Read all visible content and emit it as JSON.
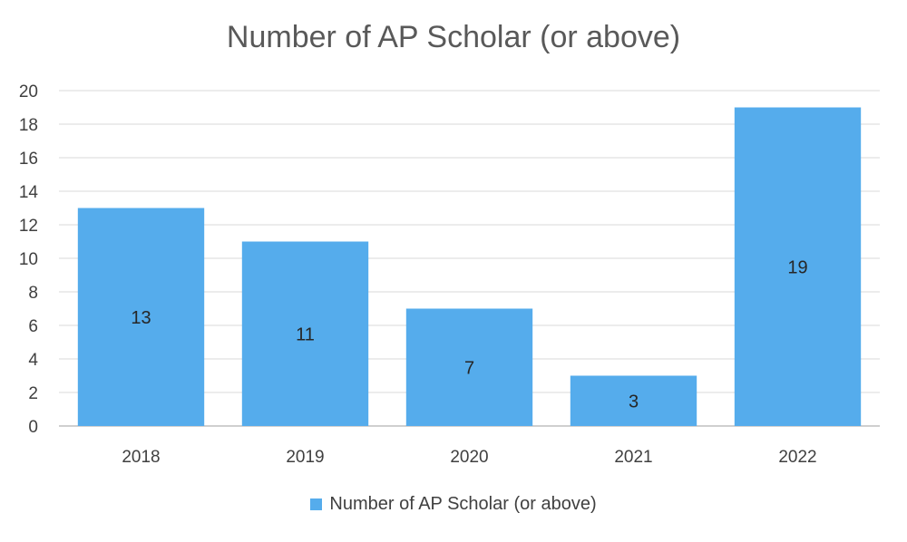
{
  "chart_data": {
    "type": "bar",
    "title": "Number of AP Scholar (or above)",
    "categories": [
      "2018",
      "2019",
      "2020",
      "2021",
      "2022"
    ],
    "series": [
      {
        "name": "Number of AP Scholar (or above)",
        "values": [
          13,
          11,
          7,
          3,
          19
        ],
        "color": "#55acec"
      }
    ],
    "ylim": [
      0,
      20
    ],
    "yticks": [
      "0",
      "2",
      "4",
      "6",
      "8",
      "10",
      "12",
      "14",
      "16",
      "18",
      "20"
    ],
    "xlabel": "",
    "ylabel": "",
    "grid": true,
    "legend_position": "bottom",
    "data_labels": [
      "13",
      "11",
      "7",
      "3",
      "19"
    ]
  },
  "colors": {
    "bar": "#55acec",
    "grid": "#d9d9d9",
    "axis": "#bfbfbf"
  }
}
